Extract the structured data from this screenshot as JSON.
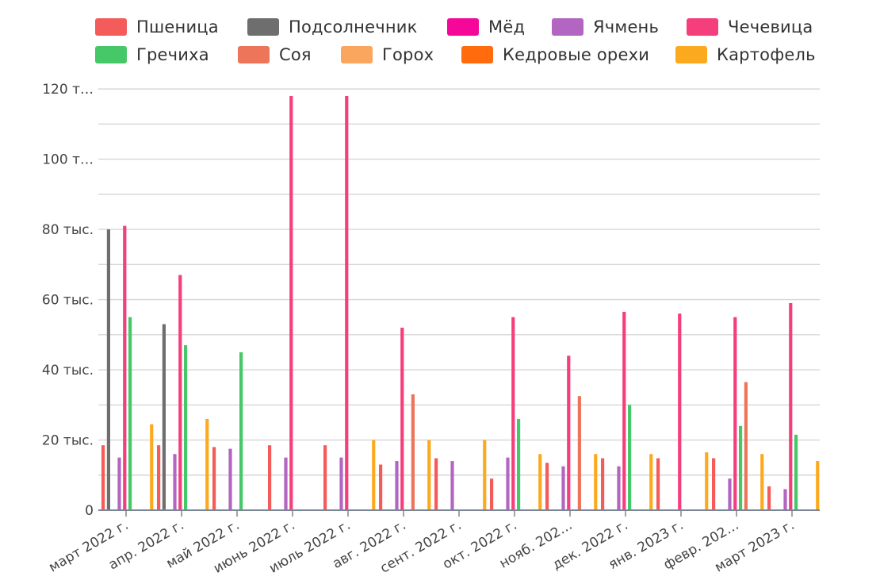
{
  "chart_data": {
    "type": "bar",
    "title": "",
    "xlabel": "",
    "ylabel": "",
    "ylim": [
      0,
      125000
    ],
    "grid": true,
    "legend_placement": "top",
    "y_ticks": [
      {
        "value": 0,
        "label": "0"
      },
      {
        "value": 20000,
        "label": "20 тыс."
      },
      {
        "value": 40000,
        "label": "40 тыс."
      },
      {
        "value": 60000,
        "label": "60 тыс."
      },
      {
        "value": 80000,
        "label": "80 тыс."
      },
      {
        "value": 100000,
        "label": "100 т…"
      },
      {
        "value": 120000,
        "label": "120 т…"
      }
    ],
    "categories": [
      "март 2022 г.",
      "апр. 2022 г.",
      "май 2022 г.",
      "июнь 2022 г.",
      "июль 2022 г.",
      "авг. 2022 г.",
      "сент. 2022 г.",
      "окт. 2022 г.",
      "нояб. 202…",
      "дек. 2022 г.",
      "янв. 2023 г.",
      "февр. 202…",
      "март 2023 г."
    ],
    "series": [
      {
        "name": "Пшеница",
        "color": "#f45b5b",
        "values": [
          18500,
          18500,
          18000,
          18500,
          18500,
          13000,
          14800,
          9000,
          13500,
          14800,
          14800,
          14800,
          6800
        ]
      },
      {
        "name": "Подсолнечник",
        "color": "#6e6e6e",
        "values": [
          80000,
          53000,
          0,
          0,
          0,
          0,
          0,
          0,
          0,
          0,
          0,
          0,
          0
        ]
      },
      {
        "name": "Мёд",
        "color": "#f5079a",
        "values": [
          0,
          0,
          0,
          0,
          0,
          0,
          0,
          0,
          0,
          0,
          0,
          0,
          0
        ]
      },
      {
        "name": "Ячмень",
        "color": "#b266c1",
        "values": [
          15000,
          16000,
          17500,
          15000,
          15000,
          14000,
          14000,
          15000,
          12500,
          12500,
          0,
          9000,
          6000
        ]
      },
      {
        "name": "Чечевица",
        "color": "#f53e7c",
        "values": [
          81000,
          67000,
          0,
          118000,
          118000,
          52000,
          0,
          55000,
          44000,
          56500,
          56000,
          55000,
          59000
        ]
      },
      {
        "name": "Гречиха",
        "color": "#47c868",
        "values": [
          55000,
          47000,
          45000,
          0,
          0,
          0,
          0,
          26000,
          0,
          30000,
          0,
          24000,
          21500
        ]
      },
      {
        "name": "Соя",
        "color": "#ec755a",
        "values": [
          0,
          0,
          0,
          0,
          0,
          33000,
          0,
          0,
          32500,
          0,
          0,
          36500,
          0
        ]
      },
      {
        "name": "Горох",
        "color": "#fba65e",
        "values": [
          0,
          0,
          0,
          0,
          0,
          0,
          0,
          0,
          0,
          0,
          0,
          0,
          0
        ]
      },
      {
        "name": "Кедровые орехи",
        "color": "#ff6b0d",
        "values": [
          0,
          0,
          0,
          0,
          0,
          0,
          0,
          0,
          0,
          0,
          0,
          0,
          0
        ]
      },
      {
        "name": "Картофель",
        "color": "#fbaa20",
        "values": [
          24500,
          26000,
          0,
          0,
          20000,
          20000,
          20000,
          16000,
          16000,
          16000,
          16500,
          16000,
          14000
        ]
      }
    ]
  }
}
